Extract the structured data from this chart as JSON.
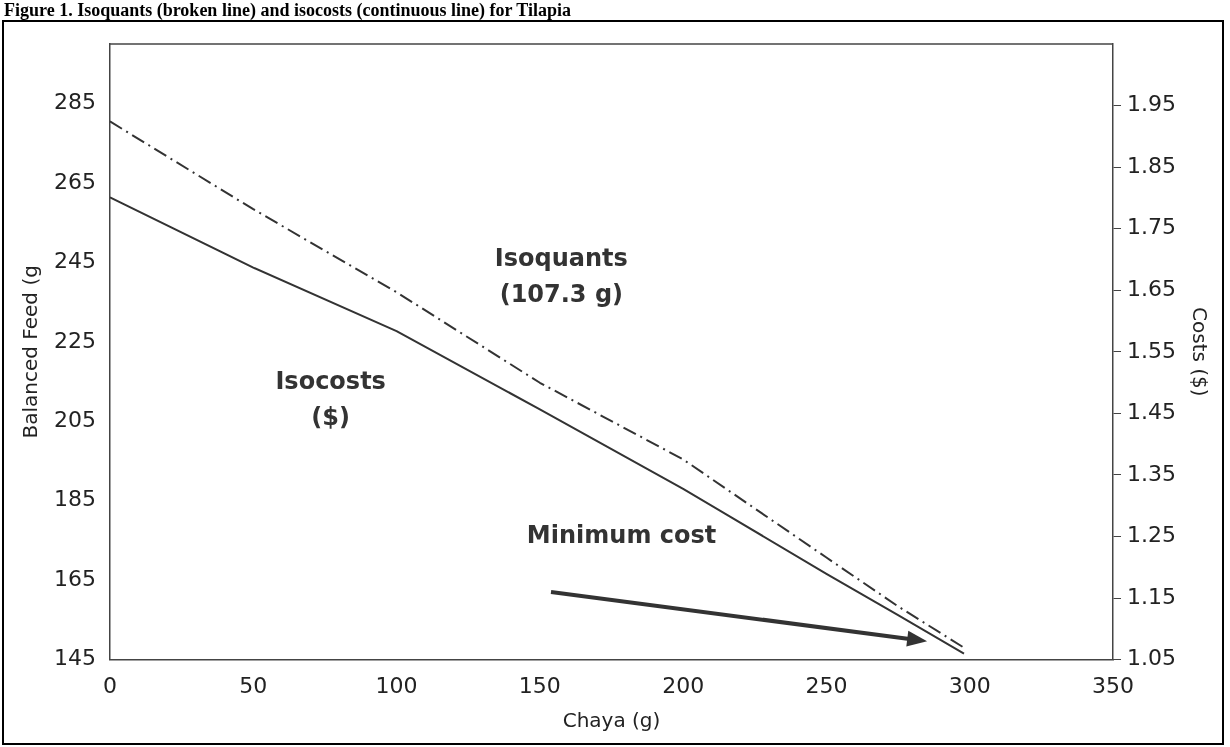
{
  "chart_data": {
    "type": "line",
    "title": "Figure 1. Isoquants (broken line) and isocosts (continuous line) for Tilapia",
    "xlabel": "Chaya (g)",
    "ylabel": "Balanced Feed (g",
    "y2label": "Costs ($)",
    "xlim": [
      0,
      350
    ],
    "xticks": [
      0,
      50,
      100,
      150,
      200,
      250,
      300,
      350
    ],
    "ylim": [
      145,
      300
    ],
    "yticks": [
      145,
      165,
      185,
      205,
      225,
      245,
      265,
      285
    ],
    "y2lim": [
      1.05,
      2.05
    ],
    "y2ticks": [
      1.05,
      1.15,
      1.25,
      1.35,
      1.45,
      1.55,
      1.65,
      1.75,
      1.85,
      1.95
    ],
    "grid": false,
    "legend": false,
    "marker": "none",
    "series": [
      {
        "type": "line",
        "color": "#333333",
        "line_style": "dashed",
        "x": [
          0,
          50,
          100,
          150,
          200,
          250,
          275,
          298
        ],
        "values": [
          280.5,
          258.4,
          237.5,
          214.7,
          195.4,
          170.7,
          158.4,
          148
        ]
      },
      {
        "type": "line",
        "color": "#333333",
        "line_style": "solid",
        "x": [
          0,
          50,
          100,
          150,
          200,
          250,
          275,
          298
        ],
        "values": [
          261.4,
          243.7,
          227.7,
          208,
          188,
          166.6,
          156.2,
          146.5
        ]
      }
    ],
    "annotations": [
      "Isoquants\n(107.3 g)",
      "Isocosts\n($)",
      "Minimum cost"
    ]
  }
}
